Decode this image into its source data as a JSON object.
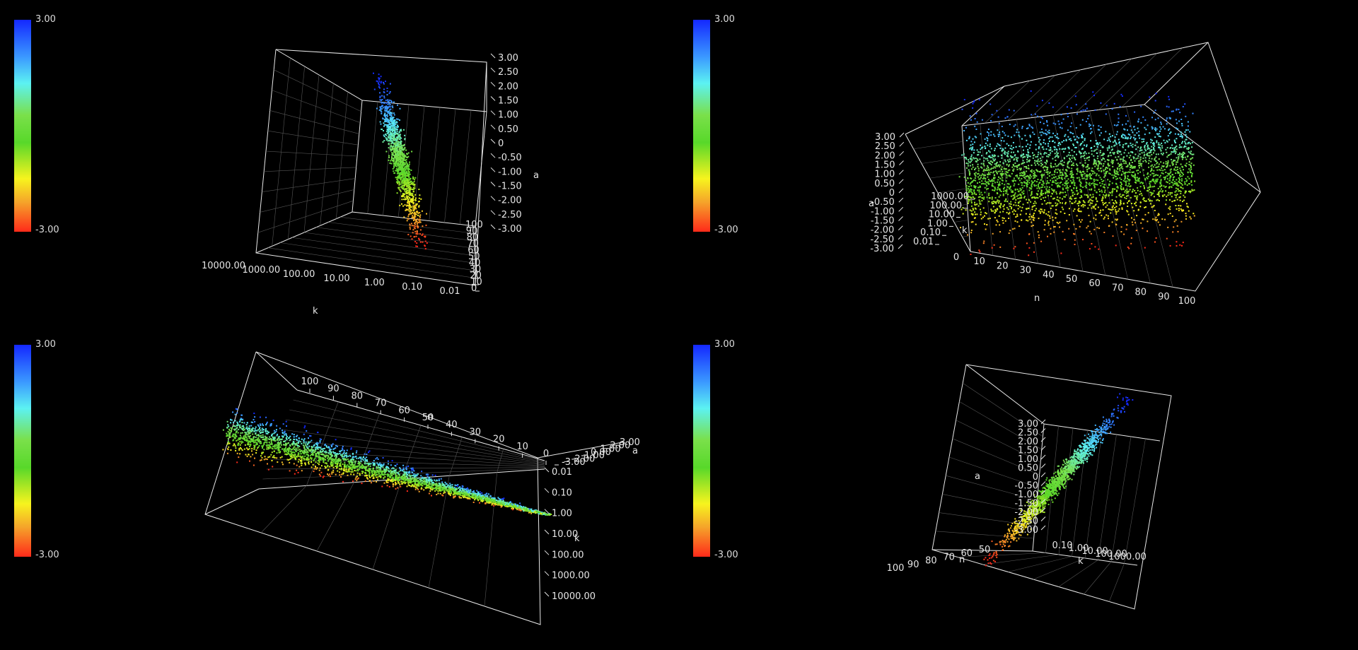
{
  "chart_data": [
    {
      "type": "scatter3d",
      "view": "top-left",
      "colorbar": {
        "max_label": "3.00",
        "min_label": "-3.00",
        "range": [
          -3,
          3
        ]
      },
      "axes": {
        "x": "k",
        "y": "n",
        "z": "a"
      },
      "k_ticks": [
        "10000.00",
        "1000.00",
        "100.00",
        "10.00",
        "1.00",
        "0.10",
        "0.01"
      ],
      "a_ticks": [
        "3.00",
        "2.50",
        "2.00",
        "1.50",
        "1.00",
        "0.50",
        "0",
        "-0.50",
        "-1.00",
        "-1.50",
        "-2.00",
        "-2.50",
        "-3.00"
      ],
      "n_ticks": [
        "0",
        "10",
        "20",
        "30",
        "40",
        "50",
        "60",
        "70",
        "80",
        "90",
        "100"
      ],
      "k_label": "k",
      "a_label": "a"
    },
    {
      "type": "scatter3d",
      "view": "top-right",
      "colorbar": {
        "max_label": "3.00",
        "min_label": "-3.00",
        "range": [
          -3,
          3
        ]
      },
      "axes": {
        "x": "n",
        "y": "k",
        "z": "a"
      },
      "n_ticks": [
        "0",
        "10",
        "20",
        "30",
        "40",
        "50",
        "60",
        "70",
        "80",
        "90",
        "100"
      ],
      "a_ticks": [
        "3.00",
        "2.50",
        "2.00",
        "1.50",
        "1.00",
        "0.50",
        "0",
        "-0.50",
        "-1.00",
        "-1.50",
        "-2.00",
        "-2.50",
        "-3.00"
      ],
      "k_ticks": [
        "0.01",
        "0.10",
        "1.00",
        "10.00",
        "100.00",
        "1000.00"
      ],
      "n_label": "n",
      "a_label": "a",
      "k_label": "k"
    },
    {
      "type": "scatter3d",
      "view": "bottom-left",
      "colorbar": {
        "max_label": "3.00",
        "min_label": "-3.00",
        "range": [
          -3,
          3
        ]
      },
      "axes": {
        "x": "n",
        "y": "k",
        "z": "a"
      },
      "n_ticks": [
        "100",
        "90",
        "80",
        "70",
        "60",
        "50",
        "40",
        "30",
        "20",
        "10",
        "0"
      ],
      "k_ticks": [
        "0.01",
        "0.10",
        "1.00",
        "10.00",
        "100.00",
        "1000.00",
        "10000.00"
      ],
      "a_ticks": [
        "-3.00",
        "-2.00",
        "-1.00",
        "0.00",
        "1.00",
        "2.00",
        "3.00"
      ],
      "n_label": "n",
      "k_label": "k",
      "a_label": "a"
    },
    {
      "type": "scatter3d",
      "view": "bottom-right",
      "colorbar": {
        "max_label": "3.00",
        "min_label": "-3.00",
        "range": [
          -3,
          3
        ]
      },
      "axes": {
        "x": "k",
        "y": "n",
        "z": "a"
      },
      "a_ticks": [
        "3.00",
        "2.50",
        "2.00",
        "1.50",
        "1.00",
        "0.50",
        "0",
        "-0.50",
        "-1.00",
        "-1.50",
        "-2.00",
        "-2.50",
        "-3.00"
      ],
      "k_ticks": [
        "0.10",
        "1.00",
        "10.00",
        "100.00",
        "1000.00"
      ],
      "n_ticks": [
        "100",
        "90",
        "80",
        "70",
        "60",
        "50"
      ],
      "a_label": "a",
      "k_label": "k",
      "n_label": "n"
    }
  ]
}
